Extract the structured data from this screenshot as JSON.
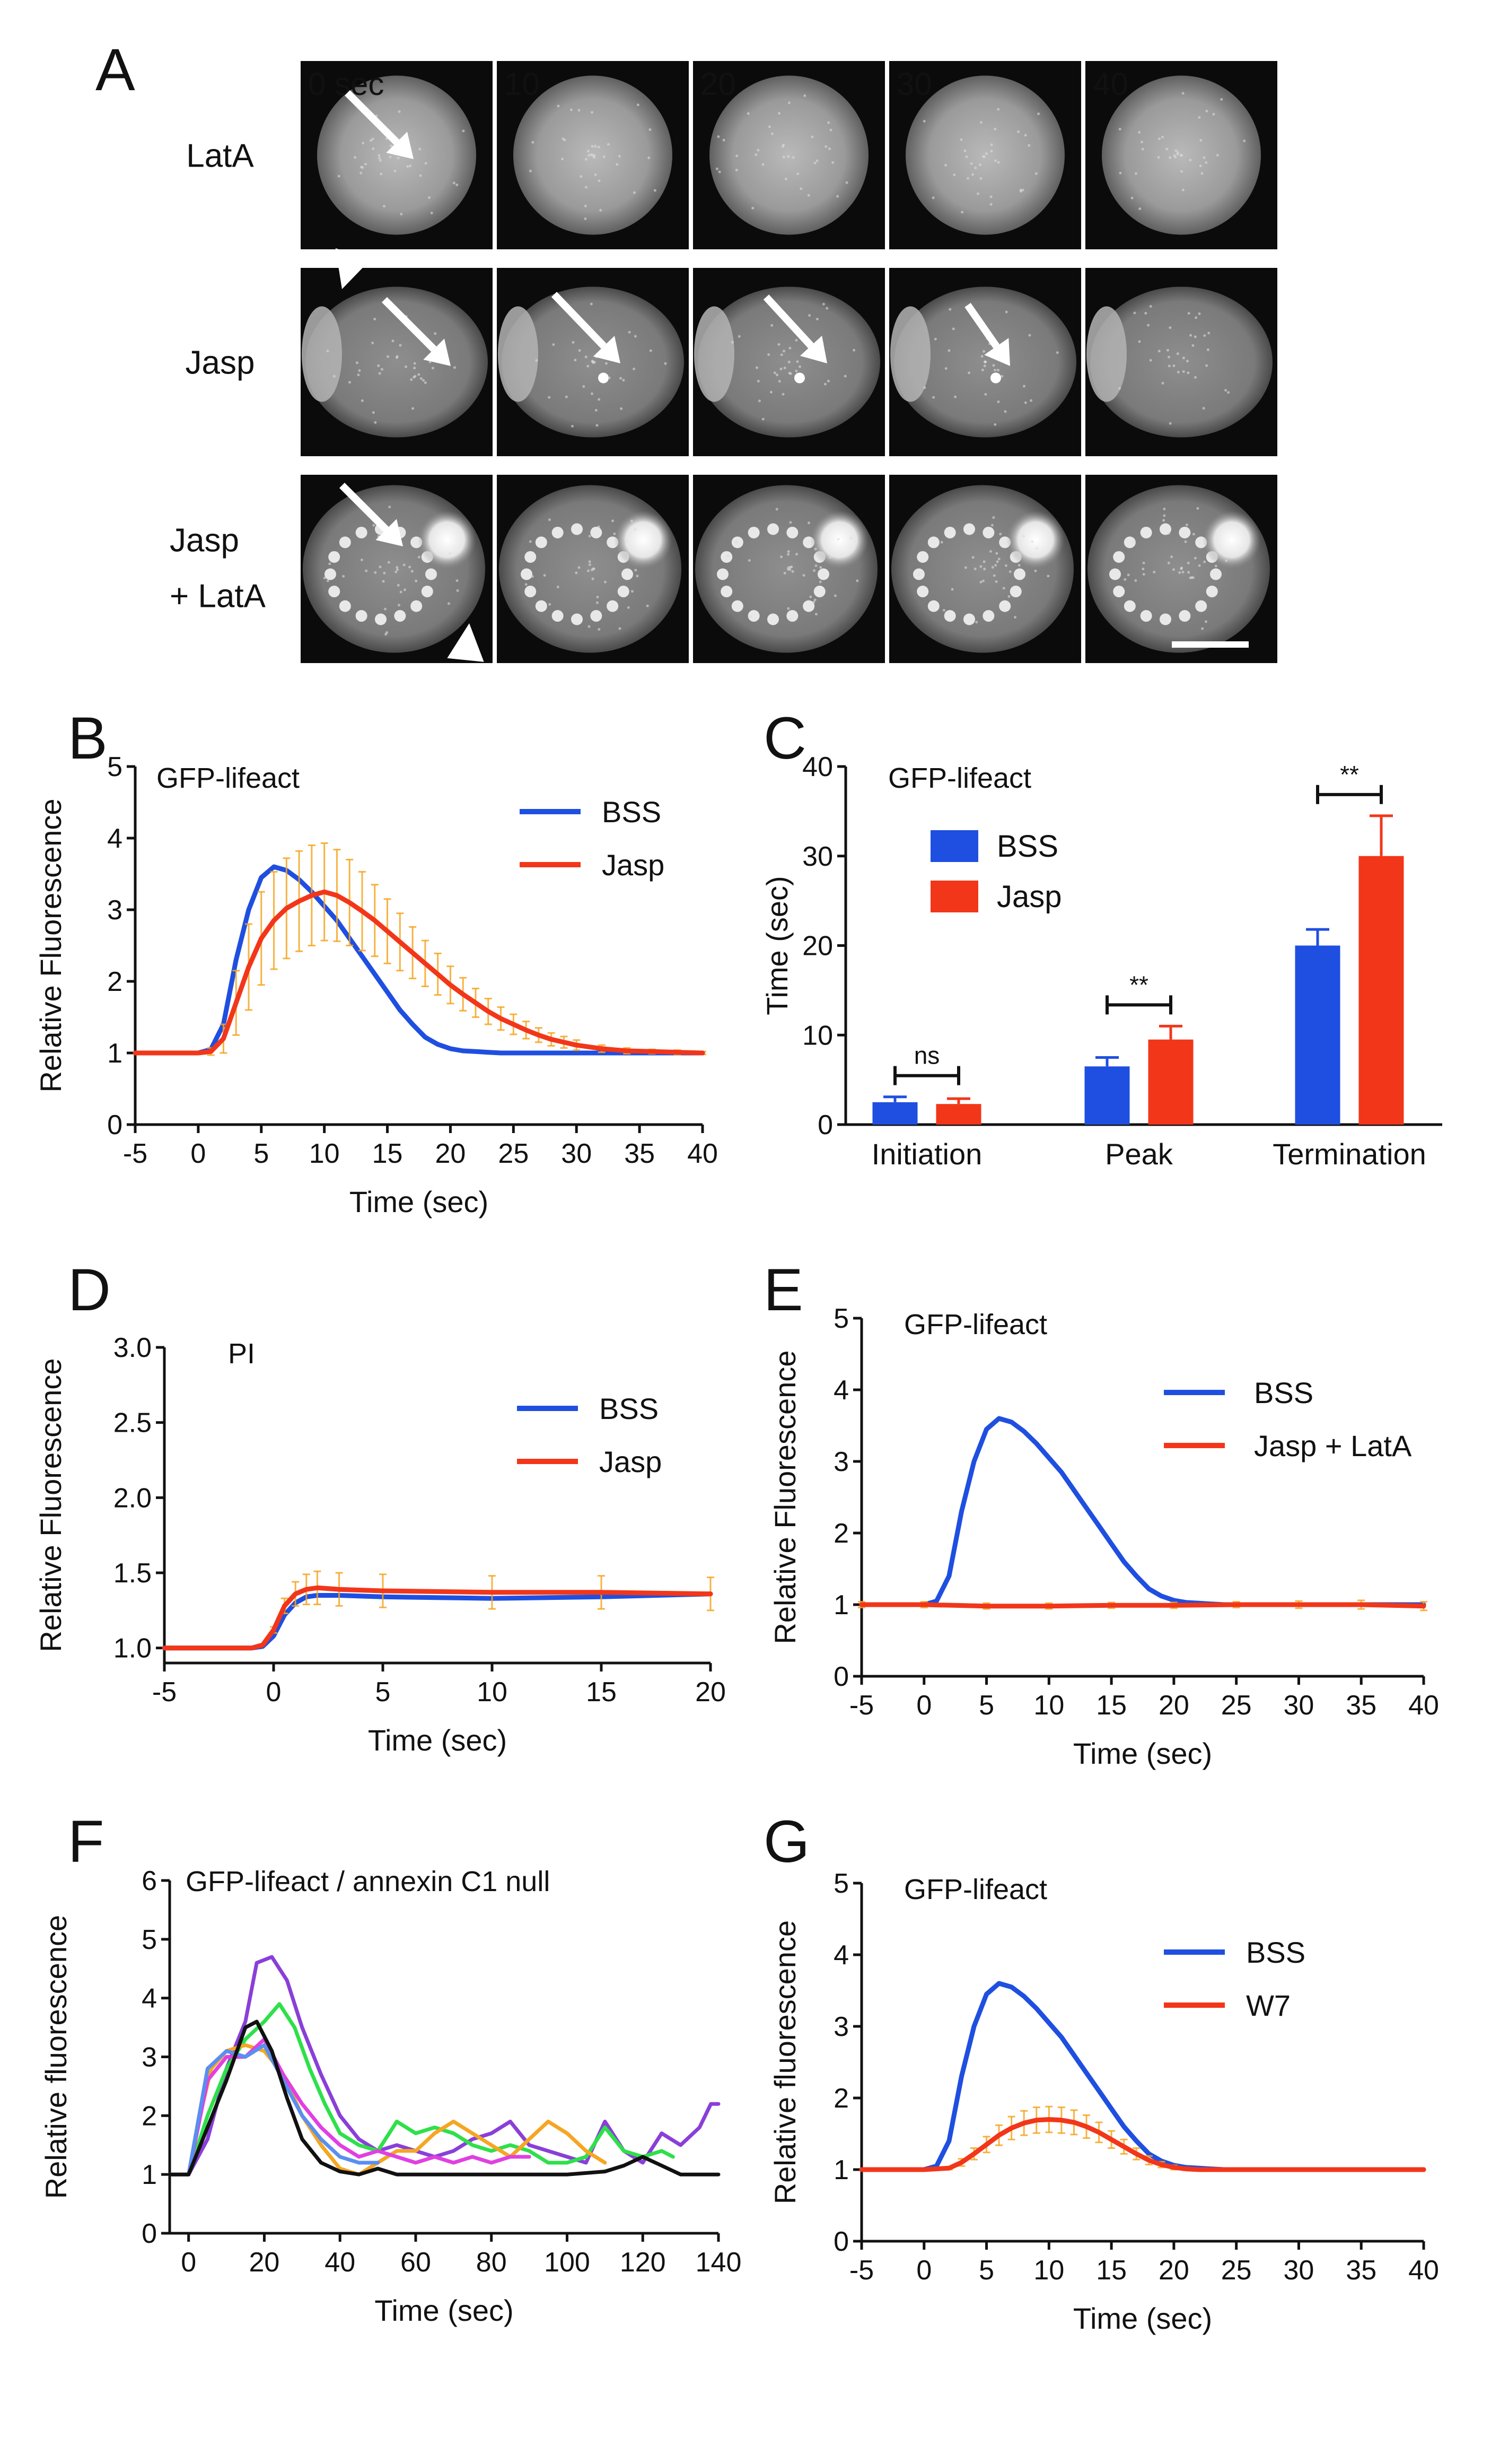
{
  "panel_letters": {
    "a": "A",
    "b": "B",
    "c": "C",
    "d": "D",
    "e": "E",
    "f": "F",
    "g": "G"
  },
  "colors": {
    "blue": "#1f4fe0",
    "red": "#f2361a",
    "orange": "#f5a623",
    "green": "#2ee04a",
    "purple": "#8a3fd8",
    "magenta": "#e040e0",
    "black": "#111111",
    "lightblue": "#5a8ff0"
  },
  "microscopy": {
    "time_labels": [
      "0 sec",
      "10",
      "20",
      "30",
      "40"
    ],
    "rows": [
      {
        "label_lines": [
          "LatA"
        ]
      },
      {
        "label_lines": [
          "Jasp"
        ]
      },
      {
        "label_lines": [
          "Jasp",
          "+ LatA"
        ]
      }
    ]
  },
  "chart_data": [
    {
      "id": "B",
      "type": "line",
      "inset": "GFP-lifeact",
      "xlabel": "Time (sec)",
      "ylabel": "Relative Fluorescence",
      "xlim": [
        -5,
        40
      ],
      "ylim": [
        0,
        5
      ],
      "xticks": [
        -5,
        0,
        5,
        10,
        15,
        20,
        25,
        30,
        35,
        40
      ],
      "yticks": [
        0,
        1,
        2,
        3,
        4,
        5
      ],
      "legend": [
        "BSS",
        "Jasp"
      ],
      "legend_position": "top-right",
      "series": [
        {
          "name": "BSS",
          "color": "#1f4fe0",
          "x": [
            -5,
            0,
            1,
            2,
            3,
            4,
            5,
            6,
            7,
            8,
            9,
            10,
            11,
            12,
            13,
            14,
            15,
            16,
            17,
            18,
            19,
            20,
            21,
            22,
            23,
            24,
            25,
            30,
            35,
            40
          ],
          "y": [
            1,
            1,
            1.05,
            1.4,
            2.3,
            3.0,
            3.45,
            3.6,
            3.55,
            3.42,
            3.25,
            3.05,
            2.85,
            2.6,
            2.35,
            2.1,
            1.85,
            1.6,
            1.4,
            1.22,
            1.12,
            1.06,
            1.03,
            1.02,
            1.01,
            1.0,
            1.0,
            1.0,
            1.0,
            1.0
          ]
        },
        {
          "name": "Jasp",
          "color": "#f2361a",
          "errorbars": true,
          "x": [
            -5,
            0,
            1,
            2,
            3,
            4,
            5,
            6,
            7,
            8,
            9,
            10,
            11,
            12,
            13,
            14,
            15,
            16,
            17,
            18,
            19,
            20,
            21,
            22,
            23,
            24,
            25,
            26,
            27,
            28,
            29,
            30,
            32,
            34,
            36,
            38,
            40
          ],
          "y": [
            1,
            1,
            1.02,
            1.2,
            1.7,
            2.2,
            2.6,
            2.85,
            3.02,
            3.12,
            3.2,
            3.25,
            3.2,
            3.1,
            2.98,
            2.85,
            2.7,
            2.55,
            2.4,
            2.25,
            2.1,
            1.95,
            1.82,
            1.7,
            1.58,
            1.48,
            1.4,
            1.32,
            1.25,
            1.19,
            1.15,
            1.11,
            1.06,
            1.03,
            1.02,
            1.01,
            1.0
          ],
          "err": [
            0,
            0,
            0.05,
            0.2,
            0.45,
            0.6,
            0.65,
            0.68,
            0.7,
            0.7,
            0.7,
            0.68,
            0.64,
            0.6,
            0.55,
            0.5,
            0.45,
            0.4,
            0.36,
            0.32,
            0.29,
            0.26,
            0.23,
            0.2,
            0.18,
            0.16,
            0.14,
            0.12,
            0.1,
            0.09,
            0.08,
            0.07,
            0.05,
            0.04,
            0.03,
            0.03,
            0.02
          ]
        }
      ]
    },
    {
      "id": "C",
      "type": "bar",
      "inset": "GFP-lifeact",
      "xlabel": "",
      "ylabel": "Time (sec)",
      "ylim": [
        0,
        40
      ],
      "yticks": [
        0,
        10,
        20,
        30,
        40
      ],
      "categories": [
        "Initiation",
        "Peak",
        "Termination"
      ],
      "legend": [
        "BSS",
        "Jasp"
      ],
      "legend_position": "top-left",
      "series": [
        {
          "name": "BSS",
          "color": "#1f4fe0",
          "values": [
            2.5,
            6.5,
            20
          ],
          "err": [
            0.6,
            1.0,
            1.8
          ]
        },
        {
          "name": "Jasp",
          "color": "#f2361a",
          "values": [
            2.3,
            9.5,
            30
          ],
          "err": [
            0.6,
            1.5,
            4.5
          ]
        }
      ],
      "significance": [
        "ns",
        "**",
        "**"
      ]
    },
    {
      "id": "D",
      "type": "line",
      "inset": "PI",
      "xlabel": "Time (sec)",
      "ylabel": "Relative Fluorescence",
      "xlim": [
        -5,
        20
      ],
      "ylim": [
        0.9,
        3.0
      ],
      "xticks": [
        -5,
        0,
        5,
        10,
        15,
        20
      ],
      "yticks": [
        1.0,
        1.5,
        2.0,
        2.5,
        3.0
      ],
      "ytick_labels": [
        "1.0",
        "1.5",
        "2.0",
        "2.5",
        "3.0"
      ],
      "legend": [
        "BSS",
        "Jasp"
      ],
      "legend_position": "top-right",
      "series": [
        {
          "name": "BSS",
          "color": "#1f4fe0",
          "x": [
            -5,
            -1,
            -0.5,
            0,
            0.5,
            1,
            1.5,
            2,
            3,
            5,
            10,
            15,
            20
          ],
          "y": [
            1.0,
            1.0,
            1.01,
            1.08,
            1.22,
            1.3,
            1.34,
            1.35,
            1.35,
            1.34,
            1.33,
            1.34,
            1.36
          ]
        },
        {
          "name": "Jasp",
          "color": "#f2361a",
          "errorbars": true,
          "x": [
            -5,
            -1,
            -0.5,
            0,
            0.5,
            1,
            1.5,
            2,
            3,
            5,
            10,
            15,
            20
          ],
          "y": [
            1.0,
            1.0,
            1.02,
            1.12,
            1.28,
            1.36,
            1.39,
            1.4,
            1.39,
            1.38,
            1.37,
            1.37,
            1.36
          ],
          "err": [
            0,
            0,
            0,
            0.02,
            0.05,
            0.08,
            0.1,
            0.11,
            0.11,
            0.11,
            0.11,
            0.11,
            0.11
          ]
        }
      ]
    },
    {
      "id": "E",
      "type": "line",
      "inset": "GFP-lifeact",
      "xlabel": "Time (sec)",
      "ylabel": "Relative Fluorescence",
      "xlim": [
        -5,
        40
      ],
      "ylim": [
        0,
        5
      ],
      "xticks": [
        -5,
        0,
        5,
        10,
        15,
        20,
        25,
        30,
        35,
        40
      ],
      "yticks": [
        0,
        1,
        2,
        3,
        4,
        5
      ],
      "legend": [
        "BSS",
        "Jasp + LatA"
      ],
      "legend_position": "top-right",
      "series": [
        {
          "name": "BSS",
          "color": "#1f4fe0",
          "x": [
            -5,
            0,
            1,
            2,
            3,
            4,
            5,
            6,
            7,
            8,
            9,
            10,
            11,
            12,
            13,
            14,
            15,
            16,
            17,
            18,
            19,
            20,
            21,
            22,
            23,
            24,
            25,
            30,
            35,
            40
          ],
          "y": [
            1,
            1,
            1.05,
            1.4,
            2.3,
            3.0,
            3.45,
            3.6,
            3.55,
            3.42,
            3.25,
            3.05,
            2.85,
            2.6,
            2.35,
            2.1,
            1.85,
            1.6,
            1.4,
            1.22,
            1.12,
            1.06,
            1.03,
            1.02,
            1.01,
            1.0,
            1.0,
            1.0,
            1.0,
            1.0
          ]
        },
        {
          "name": "Jasp + LatA",
          "color": "#f2361a",
          "errorbars": true,
          "x": [
            -5,
            0,
            5,
            10,
            15,
            20,
            25,
            30,
            35,
            40
          ],
          "y": [
            1.0,
            1.0,
            0.98,
            0.98,
            0.99,
            0.99,
            1.0,
            1.0,
            1.0,
            0.98
          ],
          "err": [
            0.04,
            0.04,
            0.04,
            0.04,
            0.04,
            0.04,
            0.04,
            0.05,
            0.06,
            0.06
          ]
        }
      ]
    },
    {
      "id": "F",
      "type": "line",
      "inset": "GFP-lifeact / annexin C1 null",
      "xlabel": "Time (sec)",
      "ylabel": "Relative fluorescence",
      "xlim": [
        -5,
        140
      ],
      "ylim": [
        0,
        6
      ],
      "xticks": [
        0,
        20,
        40,
        60,
        80,
        100,
        120,
        140
      ],
      "yticks": [
        0,
        1,
        2,
        3,
        4,
        5,
        6
      ],
      "series": [
        {
          "name": "purple",
          "color": "#8a3fd8",
          "x": [
            -5,
            0,
            5,
            10,
            15,
            18,
            22,
            26,
            30,
            35,
            40,
            45,
            50,
            55,
            60,
            65,
            70,
            75,
            80,
            85,
            90,
            95,
            100,
            105,
            110,
            115,
            120,
            125,
            130,
            135,
            138,
            140
          ],
          "y": [
            1,
            1,
            1.6,
            2.8,
            3.6,
            4.6,
            4.7,
            4.3,
            3.5,
            2.7,
            2.0,
            1.6,
            1.4,
            1.5,
            1.4,
            1.3,
            1.4,
            1.6,
            1.7,
            1.9,
            1.5,
            1.4,
            1.3,
            1.2,
            1.9,
            1.4,
            1.2,
            1.7,
            1.5,
            1.8,
            2.2,
            2.2
          ]
        },
        {
          "name": "green",
          "color": "#2ee04a",
          "x": [
            -5,
            0,
            5,
            10,
            15,
            20,
            24,
            28,
            32,
            36,
            40,
            45,
            50,
            55,
            60,
            65,
            70,
            75,
            80,
            85,
            90,
            95,
            100,
            105,
            110,
            115,
            120,
            125,
            128
          ],
          "y": [
            1,
            1,
            2.0,
            2.8,
            3.3,
            3.6,
            3.9,
            3.5,
            2.8,
            2.2,
            1.7,
            1.5,
            1.4,
            1.9,
            1.7,
            1.8,
            1.7,
            1.5,
            1.4,
            1.5,
            1.4,
            1.2,
            1.2,
            1.3,
            1.8,
            1.4,
            1.3,
            1.4,
            1.3
          ]
        },
        {
          "name": "orange",
          "color": "#f5a623",
          "x": [
            -5,
            0,
            3,
            6,
            10,
            15,
            20,
            25,
            30,
            35,
            40,
            45,
            50,
            55,
            60,
            65,
            70,
            75,
            80,
            85,
            90,
            95,
            100,
            105,
            110
          ],
          "y": [
            1,
            1,
            2.0,
            2.8,
            3.1,
            3.2,
            3.1,
            2.7,
            2.0,
            1.5,
            1.1,
            1.0,
            1.2,
            1.4,
            1.4,
            1.7,
            1.9,
            1.7,
            1.5,
            1.3,
            1.6,
            1.9,
            1.7,
            1.4,
            1.2
          ]
        },
        {
          "name": "magenta",
          "color": "#e040e0",
          "x": [
            -5,
            0,
            5,
            10,
            15,
            20,
            25,
            30,
            35,
            40,
            45,
            50,
            55,
            60,
            65,
            70,
            75,
            80,
            85,
            90
          ],
          "y": [
            1,
            1,
            2.6,
            3.0,
            3.0,
            3.3,
            2.7,
            2.2,
            1.8,
            1.5,
            1.3,
            1.4,
            1.3,
            1.2,
            1.3,
            1.2,
            1.3,
            1.2,
            1.3,
            1.3
          ]
        },
        {
          "name": "lightblue",
          "color": "#5a8ff0",
          "x": [
            -5,
            0,
            5,
            10,
            15,
            20,
            25,
            30,
            35,
            40,
            45,
            50
          ],
          "y": [
            1,
            1,
            2.8,
            3.1,
            3.0,
            3.2,
            2.6,
            2.0,
            1.6,
            1.3,
            1.2,
            1.2
          ]
        },
        {
          "name": "black",
          "color": "#111111",
          "x": [
            -5,
            0,
            5,
            10,
            15,
            18,
            22,
            26,
            30,
            35,
            40,
            45,
            50,
            55,
            60,
            70,
            80,
            90,
            100,
            110,
            115,
            120,
            125,
            130,
            135,
            140
          ],
          "y": [
            1,
            1,
            1.8,
            2.6,
            3.5,
            3.6,
            3.1,
            2.3,
            1.6,
            1.2,
            1.05,
            1.0,
            1.1,
            1.0,
            1.0,
            1.0,
            1.0,
            1.0,
            1.0,
            1.05,
            1.15,
            1.3,
            1.15,
            1.0,
            1.0,
            1.0
          ]
        }
      ]
    },
    {
      "id": "G",
      "type": "line",
      "inset": "GFP-lifeact",
      "xlabel": "Time (sec)",
      "ylabel": "Relative fluorescence",
      "xlim": [
        -5,
        40
      ],
      "ylim": [
        0,
        5
      ],
      "xticks": [
        -5,
        0,
        5,
        10,
        15,
        20,
        25,
        30,
        35,
        40
      ],
      "yticks": [
        0,
        1,
        2,
        3,
        4,
        5
      ],
      "legend": [
        "BSS",
        "W7"
      ],
      "legend_position": "top-right",
      "series": [
        {
          "name": "BSS",
          "color": "#1f4fe0",
          "x": [
            -5,
            0,
            1,
            2,
            3,
            4,
            5,
            6,
            7,
            8,
            9,
            10,
            11,
            12,
            13,
            14,
            15,
            16,
            17,
            18,
            19,
            20,
            21,
            22,
            23,
            24,
            25,
            30,
            35,
            40
          ],
          "y": [
            1,
            1,
            1.05,
            1.4,
            2.3,
            3.0,
            3.45,
            3.6,
            3.55,
            3.42,
            3.25,
            3.05,
            2.85,
            2.6,
            2.35,
            2.1,
            1.85,
            1.6,
            1.4,
            1.22,
            1.12,
            1.06,
            1.03,
            1.02,
            1.01,
            1.0,
            1.0,
            1.0,
            1.0,
            1.0
          ]
        },
        {
          "name": "W7",
          "color": "#f2361a",
          "errorbars": true,
          "x": [
            -5,
            0,
            2,
            3,
            4,
            5,
            6,
            7,
            8,
            9,
            10,
            11,
            12,
            13,
            14,
            15,
            16,
            17,
            18,
            19,
            20,
            21,
            22,
            25,
            30,
            35,
            40
          ],
          "y": [
            1,
            1,
            1.02,
            1.1,
            1.22,
            1.35,
            1.48,
            1.58,
            1.65,
            1.69,
            1.7,
            1.69,
            1.66,
            1.6,
            1.52,
            1.42,
            1.32,
            1.22,
            1.13,
            1.07,
            1.03,
            1.01,
            1.0,
            1.0,
            1.0,
            1.0,
            1.0
          ],
          "err": [
            0,
            0,
            0.02,
            0.05,
            0.08,
            0.11,
            0.14,
            0.16,
            0.17,
            0.18,
            0.18,
            0.18,
            0.17,
            0.16,
            0.14,
            0.12,
            0.1,
            0.08,
            0.06,
            0.04,
            0.03,
            0.02,
            0.01,
            0.01,
            0.0,
            0.0,
            0.0
          ]
        }
      ]
    }
  ]
}
